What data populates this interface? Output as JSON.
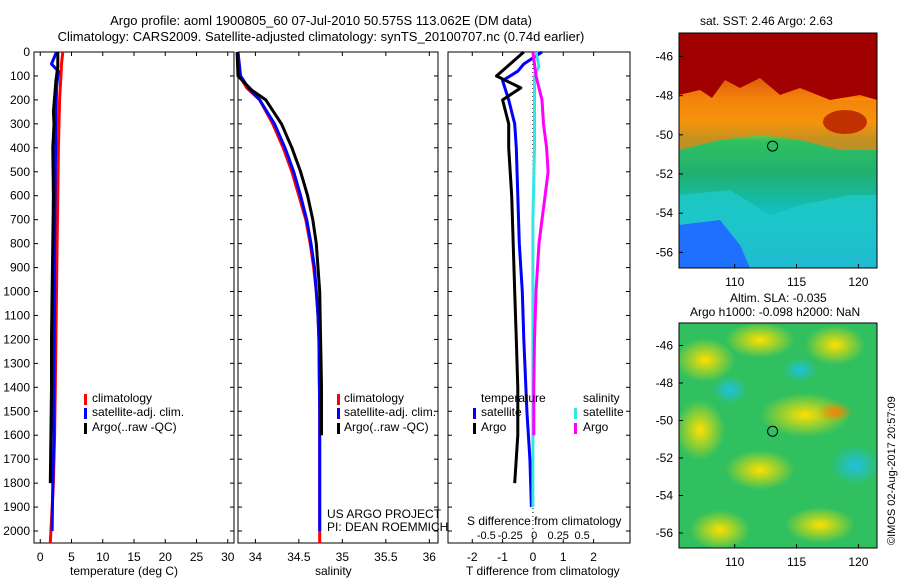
{
  "header": {
    "line1": "Argo profile: aoml 1900805_60 07-Jul-2010 50.575S 113.062E (DM data)",
    "line2": "Climatology: CARS2009. Satellite-adjusted climatology: synTS_20100707.nc (0.74d earlier)"
  },
  "panels": {
    "temperature": {
      "xlabel": "temperature (deg C)",
      "legend": [
        "climatology",
        "satellite-adj. clim.",
        "Argo(..raw -QC)"
      ]
    },
    "salinity": {
      "xlabel": "salinity",
      "legend": [
        "climatology",
        "satellite-adj. clim.",
        "Argo(..raw -QC)"
      ],
      "credit1": "US ARGO PROJECT",
      "credit2": "PI: DEAN ROEMMICH"
    },
    "difference": {
      "xlabel": "T difference from climatology",
      "top_xlabel": "S difference from climatology",
      "legend_temp_head": "temperature",
      "legend_sal_head": "salinity",
      "legend_temp": [
        "satellite",
        "Argo"
      ],
      "legend_sal": [
        "satellite",
        "Argo"
      ]
    }
  },
  "maps": {
    "sst_title": "sat. SST: 2.46 Argo: 2.63",
    "sla_title1": "Altim. SLA: -0.035",
    "sla_title2": "Argo h1000: -0.098 h2000: NaN",
    "yticks": [
      "-46",
      "-48",
      "-50",
      "-52",
      "-54",
      "-56"
    ],
    "xticks": [
      "110",
      "115",
      "120"
    ],
    "float_lon": 113.062,
    "float_lat": -50.575
  },
  "stamp": "©IMOS 02-Aug-2017 20:57:09",
  "colors": {
    "climatology": "#ff0000",
    "satellite": "#0000ff",
    "argo": "#000000",
    "sal_satellite": "#33e6e6",
    "sal_argo": "#ff00ff"
  },
  "chart_data": [
    {
      "type": "line",
      "title": "",
      "xlabel": "temperature (deg C)",
      "ylabel": "",
      "xlim": [
        -1,
        31
      ],
      "ylim": [
        2050,
        0
      ],
      "xticks": [
        0,
        5,
        10,
        15,
        20,
        25,
        30
      ],
      "yticks": [
        0,
        100,
        200,
        300,
        400,
        500,
        600,
        700,
        800,
        900,
        1000,
        1100,
        1200,
        1300,
        1400,
        1500,
        1600,
        1700,
        1800,
        1900,
        2000
      ],
      "series": [
        {
          "name": "climatology",
          "color": "climatology",
          "points": [
            [
              3.6,
              0
            ],
            [
              3.4,
              50
            ],
            [
              3.3,
              100
            ],
            [
              3.1,
              200
            ],
            [
              3.0,
              300
            ],
            [
              2.9,
              400
            ],
            [
              2.8,
              600
            ],
            [
              2.7,
              800
            ],
            [
              2.6,
              1000
            ],
            [
              2.5,
              1200
            ],
            [
              2.4,
              1400
            ],
            [
              2.3,
              1600
            ],
            [
              2.1,
              1800
            ],
            [
              1.6,
              2050
            ]
          ]
        },
        {
          "name": "satellite-adj. clim.",
          "color": "satellite",
          "points": [
            [
              2.6,
              0
            ],
            [
              1.8,
              50
            ],
            [
              2.9,
              80
            ],
            [
              2.6,
              150
            ],
            [
              2.5,
              300
            ],
            [
              2.4,
              500
            ],
            [
              2.3,
              800
            ],
            [
              2.3,
              1000
            ],
            [
              2.2,
              1300
            ],
            [
              2.2,
              1600
            ],
            [
              2.0,
              1800
            ],
            [
              1.9,
              2000
            ]
          ]
        },
        {
          "name": "Argo(..raw -QC)",
          "color": "argo",
          "points": [
            [
              2.8,
              0
            ],
            [
              2.8,
              60
            ],
            [
              2.5,
              120
            ],
            [
              2.1,
              250
            ],
            [
              2.2,
              300
            ],
            [
              2.0,
              400
            ],
            [
              2.1,
              600
            ],
            [
              2.0,
              800
            ],
            [
              1.9,
              1000
            ],
            [
              1.8,
              1200
            ],
            [
              1.8,
              1400
            ],
            [
              1.7,
              1600
            ],
            [
              1.6,
              1800
            ]
          ]
        }
      ]
    },
    {
      "type": "line",
      "title": "",
      "xlabel": "salinity",
      "ylabel": "",
      "xlim": [
        33.8,
        36.1
      ],
      "ylim": [
        2050,
        0
      ],
      "xticks": [
        34,
        34.5,
        35,
        35.5,
        36
      ],
      "series": [
        {
          "name": "climatology",
          "color": "climatology",
          "points": [
            [
              33.8,
              0
            ],
            [
              33.82,
              100
            ],
            [
              33.9,
              150
            ],
            [
              34.05,
              200
            ],
            [
              34.2,
              300
            ],
            [
              34.32,
              400
            ],
            [
              34.42,
              500
            ],
            [
              34.5,
              600
            ],
            [
              34.58,
              700
            ],
            [
              34.63,
              800
            ],
            [
              34.67,
              900
            ],
            [
              34.7,
              1000
            ],
            [
              34.72,
              1100
            ],
            [
              34.73,
              1200
            ],
            [
              34.74,
              1500
            ],
            [
              34.74,
              2050
            ]
          ]
        },
        {
          "name": "satellite-adj. clim.",
          "color": "satellite",
          "points": [
            [
              33.8,
              0
            ],
            [
              33.83,
              100
            ],
            [
              33.92,
              150
            ],
            [
              34.05,
              200
            ],
            [
              34.22,
              300
            ],
            [
              34.34,
              400
            ],
            [
              34.44,
              500
            ],
            [
              34.52,
              600
            ],
            [
              34.59,
              700
            ],
            [
              34.64,
              800
            ],
            [
              34.68,
              900
            ],
            [
              34.7,
              1000
            ],
            [
              34.72,
              1100
            ],
            [
              34.73,
              1200
            ],
            [
              34.74,
              1500
            ],
            [
              34.74,
              2000
            ]
          ]
        },
        {
          "name": "Argo(..raw -QC)",
          "color": "argo",
          "points": [
            [
              33.79,
              0
            ],
            [
              33.8,
              100
            ],
            [
              33.96,
              160
            ],
            [
              34.12,
              200
            ],
            [
              34.3,
              300
            ],
            [
              34.42,
              400
            ],
            [
              34.52,
              500
            ],
            [
              34.6,
              600
            ],
            [
              34.66,
              700
            ],
            [
              34.7,
              800
            ],
            [
              34.72,
              900
            ],
            [
              34.74,
              1000
            ],
            [
              34.75,
              1200
            ],
            [
              34.76,
              1400
            ],
            [
              34.76,
              1600
            ]
          ]
        }
      ]
    },
    {
      "type": "line",
      "title": "",
      "xlabel": "T difference from climatology",
      "ylabel": "",
      "xlim": [
        -2.8,
        3.2
      ],
      "ylim": [
        2050,
        0
      ],
      "xticks": [
        -2,
        -1,
        0,
        1,
        2
      ],
      "top_axis": {
        "label": "S difference from climatology",
        "ticks": [
          -0.5,
          -0.25,
          0,
          0.25,
          0.5
        ]
      },
      "series": [
        {
          "name": "temperature satellite",
          "color": "satellite",
          "points": [
            [
              0.3,
              0
            ],
            [
              -0.3,
              50
            ],
            [
              -0.5,
              80
            ],
            [
              -1.0,
              120
            ],
            [
              -0.8,
              200
            ],
            [
              -0.6,
              300
            ],
            [
              -0.55,
              400
            ],
            [
              -0.5,
              600
            ],
            [
              -0.45,
              800
            ],
            [
              -0.35,
              1000
            ],
            [
              -0.3,
              1200
            ],
            [
              -0.2,
              1500
            ],
            [
              -0.1,
              1700
            ],
            [
              -0.05,
              1900
            ]
          ]
        },
        {
          "name": "temperature Argo",
          "color": "argo",
          "points": [
            [
              -0.3,
              0
            ],
            [
              -1.2,
              100
            ],
            [
              -0.4,
              150
            ],
            [
              -1.0,
              200
            ],
            [
              -0.8,
              300
            ],
            [
              -0.8,
              400
            ],
            [
              -0.7,
              600
            ],
            [
              -0.65,
              800
            ],
            [
              -0.6,
              1000
            ],
            [
              -0.55,
              1200
            ],
            [
              -0.5,
              1400
            ],
            [
              -0.5,
              1600
            ],
            [
              -0.6,
              1800
            ]
          ]
        },
        {
          "name": "salinity satellite",
          "color": "sal_satellite",
          "points": [
            [
              0.1,
              0
            ],
            [
              0.2,
              60
            ],
            [
              0.05,
              100
            ],
            [
              0.05,
              200
            ],
            [
              0.05,
              400
            ],
            [
              0.0,
              700
            ],
            [
              0.0,
              1000
            ],
            [
              0.0,
              1500
            ],
            [
              0.0,
              1900
            ]
          ]
        },
        {
          "name": "salinity Argo",
          "color": "sal_argo",
          "points": [
            [
              0.0,
              0
            ],
            [
              0.1,
              100
            ],
            [
              0.3,
              200
            ],
            [
              0.35,
              300
            ],
            [
              0.45,
              400
            ],
            [
              0.5,
              500
            ],
            [
              0.4,
              600
            ],
            [
              0.3,
              700
            ],
            [
              0.2,
              800
            ],
            [
              0.15,
              900
            ],
            [
              0.1,
              1000
            ],
            [
              0.05,
              1200
            ],
            [
              0.03,
              1400
            ],
            [
              0.03,
              1600
            ]
          ]
        }
      ]
    }
  ]
}
